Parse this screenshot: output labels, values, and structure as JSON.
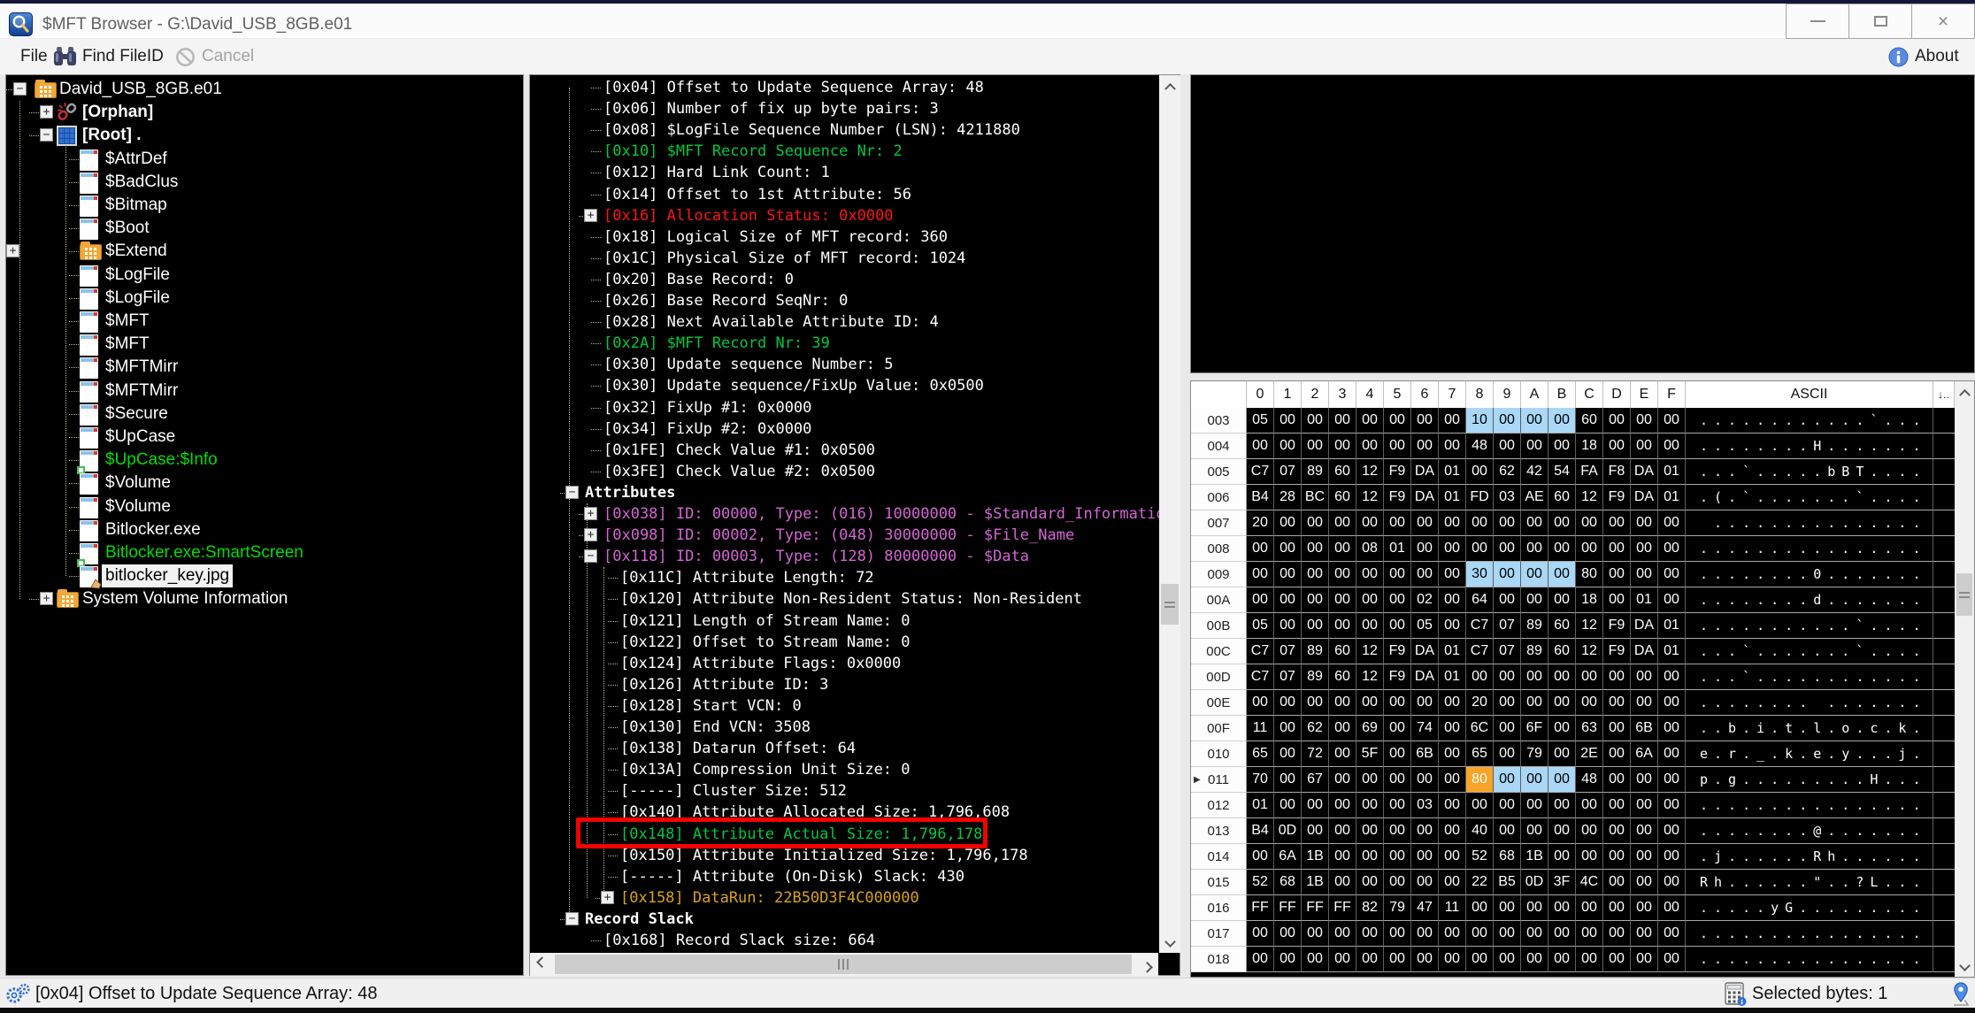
{
  "window": {
    "title": "$MFT Browser - G:\\David_USB_8GB.e01",
    "close_glyph": "×"
  },
  "toolbar": {
    "file": "File",
    "find_fileid": "Find FileID",
    "cancel": "Cancel",
    "about": "About"
  },
  "tree": [
    {
      "label": "David_USB_8GB.e01",
      "level": 0,
      "expander": "-",
      "icon": "folder"
    },
    {
      "label": "[Orphan]",
      "level": 1,
      "expander": "+",
      "icon": "broken-link",
      "bold": true
    },
    {
      "label": "[Root] .",
      "level": 1,
      "expander": "-",
      "icon": "disk",
      "bold": true
    },
    {
      "label": "$AttrDef",
      "level": 2,
      "icon": "file"
    },
    {
      "label": "$BadClus",
      "level": 2,
      "icon": "file"
    },
    {
      "label": "$Bitmap",
      "level": 2,
      "icon": "file"
    },
    {
      "label": "$Boot",
      "level": 2,
      "icon": "file"
    },
    {
      "label": "$Extend",
      "level": 2,
      "expander": "+",
      "icon": "folder"
    },
    {
      "label": "$LogFile",
      "level": 2,
      "icon": "file"
    },
    {
      "label": "$LogFile",
      "level": 2,
      "icon": "file"
    },
    {
      "label": "$MFT",
      "level": 2,
      "icon": "file"
    },
    {
      "label": "$MFT",
      "level": 2,
      "icon": "file"
    },
    {
      "label": "$MFTMirr",
      "level": 2,
      "icon": "file"
    },
    {
      "label": "$MFTMirr",
      "level": 2,
      "icon": "file"
    },
    {
      "label": "$Secure",
      "level": 2,
      "icon": "file"
    },
    {
      "label": "$UpCase",
      "level": 2,
      "icon": "file"
    },
    {
      "label": "$UpCase:$Info",
      "level": 2,
      "icon": "file-ads",
      "color": "green"
    },
    {
      "label": "$Volume",
      "level": 2,
      "icon": "file"
    },
    {
      "label": "$Volume",
      "level": 2,
      "icon": "file"
    },
    {
      "label": "Bitlocker.exe",
      "level": 2,
      "icon": "file"
    },
    {
      "label": "Bitlocker.exe:SmartScreen",
      "level": 2,
      "icon": "file-ads",
      "color": "green"
    },
    {
      "label": "bitlocker_key.jpg",
      "level": 2,
      "icon": "file-hand",
      "selected": true
    },
    {
      "label": "System Volume Information",
      "level": 1,
      "expander": "+",
      "icon": "folder"
    }
  ],
  "record": [
    {
      "text": "[0x04] Offset to Update Sequence Array: 48",
      "level": 1
    },
    {
      "text": "[0x06] Number of fix up byte pairs: 3",
      "level": 1
    },
    {
      "text": "[0x08] $LogFile Sequence Number (LSN): 4211880",
      "level": 1
    },
    {
      "text": "[0x10] $MFT Record Sequence Nr: 2",
      "level": 1,
      "color": "green"
    },
    {
      "text": "[0x12] Hard Link Count: 1",
      "level": 1
    },
    {
      "text": "[0x14] Offset to 1st Attribute: 56",
      "level": 1
    },
    {
      "text": "[0x16] Allocation Status: 0x0000",
      "level": 1,
      "color": "red",
      "expander": "+"
    },
    {
      "text": "[0x18] Logical Size of MFT record: 360",
      "level": 1
    },
    {
      "text": "[0x1C] Physical Size of MFT record: 1024",
      "level": 1
    },
    {
      "text": "[0x20] Base Record: 0",
      "level": 1
    },
    {
      "text": "[0x26] Base Record SeqNr: 0",
      "level": 1
    },
    {
      "text": "[0x28] Next Available Attribute ID: 4",
      "level": 1
    },
    {
      "text": "[0x2A] $MFT Record Nr: 39",
      "level": 1,
      "color": "green"
    },
    {
      "text": "[0x30] Update sequence Number: 5",
      "level": 1
    },
    {
      "text": "[0x30] Update sequence/FixUp Value: 0x0500",
      "level": 1
    },
    {
      "text": "[0x32] FixUp #1: 0x0000",
      "level": 1
    },
    {
      "text": "[0x34] FixUp #2: 0x0000",
      "level": 1
    },
    {
      "text": "[0x1FE] Check Value #1: 0x0500",
      "level": 1
    },
    {
      "text": "[0x3FE] Check Value #2: 0x0500",
      "level": 1
    },
    {
      "text": "Attributes",
      "level": 0,
      "bold": true,
      "expander": "-"
    },
    {
      "text": "[0x038] ID: 00000, Type: (016) 10000000 - $Standard_Information",
      "level": 1,
      "color": "magenta",
      "expander": "+"
    },
    {
      "text": "[0x098] ID: 00002, Type: (048) 30000000 - $File_Name",
      "level": 1,
      "color": "magenta",
      "expander": "+"
    },
    {
      "text": "[0x118] ID: 00003, Type: (128) 80000000 - $Data",
      "level": 1,
      "color": "magenta",
      "expander": "-"
    },
    {
      "text": "[0x11C] Attribute Length: 72",
      "level": 2
    },
    {
      "text": "[0x120] Attribute Non-Resident Status: Non-Resident",
      "level": 2
    },
    {
      "text": "[0x121] Length of Stream Name: 0",
      "level": 2
    },
    {
      "text": "[0x122] Offset to Stream Name: 0",
      "level": 2
    },
    {
      "text": "[0x124] Attribute Flags: 0x0000",
      "level": 2
    },
    {
      "text": "[0x126] Attribute ID: 3",
      "level": 2
    },
    {
      "text": "[0x128] Start VCN: 0",
      "level": 2
    },
    {
      "text": "[0x130] End VCN: 3508",
      "level": 2
    },
    {
      "text": "[0x138] Datarun Offset: 64",
      "level": 2
    },
    {
      "text": "[0x13A] Compression Unit Size: 0",
      "level": 2
    },
    {
      "text": "[-----] Cluster Size: 512",
      "level": 2
    },
    {
      "text": "[0x140] Attribute Allocated Size: 1,796,608",
      "level": 2
    },
    {
      "text": "[0x148] Attribute Actual Size:  1,796,178",
      "level": 2,
      "color": "green",
      "annotated": true
    },
    {
      "text": "[0x150] Attribute Initialized Size:  1,796,178",
      "level": 2
    },
    {
      "text": "[-----] Attribute (On-Disk) Slack:  430",
      "level": 2
    },
    {
      "text": "[0x158] DataRun:  22B50D3F4C000000",
      "level": 2,
      "color": "orange",
      "expander": "+"
    },
    {
      "text": "Record Slack",
      "level": 0,
      "bold": true,
      "expander": "-"
    },
    {
      "text": "[0x168] Record Slack size: 664",
      "level": 1
    }
  ],
  "hex": {
    "columns": [
      "0",
      "1",
      "2",
      "3",
      "4",
      "5",
      "6",
      "7",
      "8",
      "9",
      "A",
      "B",
      "C",
      "D",
      "E",
      "F"
    ],
    "ascii_header": "ASCII",
    "sort_icon": "↓..",
    "rows": [
      {
        "addr": "003",
        "bytes": [
          "05",
          "00",
          "00",
          "00",
          "00",
          "00",
          "00",
          "00",
          "10",
          "00",
          "00",
          "00",
          "60",
          "00",
          "00",
          "00"
        ],
        "ascii": "............`...",
        "hl": {
          "8": "blue",
          "9": "blue",
          "10": "blue",
          "11": "blue"
        }
      },
      {
        "addr": "004",
        "bytes": [
          "00",
          "00",
          "00",
          "00",
          "00",
          "00",
          "00",
          "00",
          "48",
          "00",
          "00",
          "00",
          "18",
          "00",
          "00",
          "00"
        ],
        "ascii": "........H......."
      },
      {
        "addr": "005",
        "bytes": [
          "C7",
          "07",
          "89",
          "60",
          "12",
          "F9",
          "DA",
          "01",
          "00",
          "62",
          "42",
          "54",
          "FA",
          "F8",
          "DA",
          "01"
        ],
        "ascii": "...`.....bBT...."
      },
      {
        "addr": "006",
        "bytes": [
          "B4",
          "28",
          "BC",
          "60",
          "12",
          "F9",
          "DA",
          "01",
          "FD",
          "03",
          "AE",
          "60",
          "12",
          "F9",
          "DA",
          "01"
        ],
        "ascii": ".(.`.......`...."
      },
      {
        "addr": "007",
        "bytes": [
          "20",
          "00",
          "00",
          "00",
          "00",
          "00",
          "00",
          "00",
          "00",
          "00",
          "00",
          "00",
          "00",
          "00",
          "00",
          "00"
        ],
        "ascii": " ..............."
      },
      {
        "addr": "008",
        "bytes": [
          "00",
          "00",
          "00",
          "00",
          "08",
          "01",
          "00",
          "00",
          "00",
          "00",
          "00",
          "00",
          "00",
          "00",
          "00",
          "00"
        ],
        "ascii": "................"
      },
      {
        "addr": "009",
        "bytes": [
          "00",
          "00",
          "00",
          "00",
          "00",
          "00",
          "00",
          "00",
          "30",
          "00",
          "00",
          "00",
          "80",
          "00",
          "00",
          "00"
        ],
        "ascii": "........0.......",
        "hl": {
          "8": "blue",
          "9": "blue",
          "10": "blue",
          "11": "blue"
        }
      },
      {
        "addr": "00A",
        "bytes": [
          "00",
          "00",
          "00",
          "00",
          "00",
          "00",
          "02",
          "00",
          "64",
          "00",
          "00",
          "00",
          "18",
          "00",
          "01",
          "00"
        ],
        "ascii": "........d......."
      },
      {
        "addr": "00B",
        "bytes": [
          "05",
          "00",
          "00",
          "00",
          "00",
          "00",
          "05",
          "00",
          "C7",
          "07",
          "89",
          "60",
          "12",
          "F9",
          "DA",
          "01"
        ],
        "ascii": "...........`...."
      },
      {
        "addr": "00C",
        "bytes": [
          "C7",
          "07",
          "89",
          "60",
          "12",
          "F9",
          "DA",
          "01",
          "C7",
          "07",
          "89",
          "60",
          "12",
          "F9",
          "DA",
          "01"
        ],
        "ascii": "...`.......`...."
      },
      {
        "addr": "00D",
        "bytes": [
          "C7",
          "07",
          "89",
          "60",
          "12",
          "F9",
          "DA",
          "01",
          "00",
          "00",
          "00",
          "00",
          "00",
          "00",
          "00",
          "00"
        ],
        "ascii": "...`............"
      },
      {
        "addr": "00E",
        "bytes": [
          "00",
          "00",
          "00",
          "00",
          "00",
          "00",
          "00",
          "00",
          "20",
          "00",
          "00",
          "00",
          "00",
          "00",
          "00",
          "00"
        ],
        "ascii": "........ ......."
      },
      {
        "addr": "00F",
        "bytes": [
          "11",
          "00",
          "62",
          "00",
          "69",
          "00",
          "74",
          "00",
          "6C",
          "00",
          "6F",
          "00",
          "63",
          "00",
          "6B",
          "00"
        ],
        "ascii": "..b.i.t.l.o.c.k."
      },
      {
        "addr": "010",
        "bytes": [
          "65",
          "00",
          "72",
          "00",
          "5F",
          "00",
          "6B",
          "00",
          "65",
          "00",
          "79",
          "00",
          "2E",
          "00",
          "6A",
          "00"
        ],
        "ascii": "e.r._.k.e.y...j."
      },
      {
        "addr": "011",
        "bytes": [
          "70",
          "00",
          "67",
          "00",
          "00",
          "00",
          "00",
          "00",
          "80",
          "00",
          "00",
          "00",
          "48",
          "00",
          "00",
          "00"
        ],
        "ascii": "p.g.........H...",
        "hl": {
          "8": "orange",
          "9": "blue",
          "10": "blue",
          "11": "blue"
        },
        "marker": true
      },
      {
        "addr": "012",
        "bytes": [
          "01",
          "00",
          "00",
          "00",
          "00",
          "00",
          "03",
          "00",
          "00",
          "00",
          "00",
          "00",
          "00",
          "00",
          "00",
          "00"
        ],
        "ascii": "................"
      },
      {
        "addr": "013",
        "bytes": [
          "B4",
          "0D",
          "00",
          "00",
          "00",
          "00",
          "00",
          "00",
          "40",
          "00",
          "00",
          "00",
          "00",
          "00",
          "00",
          "00"
        ],
        "ascii": "........@......."
      },
      {
        "addr": "014",
        "bytes": [
          "00",
          "6A",
          "1B",
          "00",
          "00",
          "00",
          "00",
          "00",
          "52",
          "68",
          "1B",
          "00",
          "00",
          "00",
          "00",
          "00"
        ],
        "ascii": ".j......Rh......"
      },
      {
        "addr": "015",
        "bytes": [
          "52",
          "68",
          "1B",
          "00",
          "00",
          "00",
          "00",
          "00",
          "22",
          "B5",
          "0D",
          "3F",
          "4C",
          "00",
          "00",
          "00"
        ],
        "ascii": "Rh......\"..?L..."
      },
      {
        "addr": "016",
        "bytes": [
          "FF",
          "FF",
          "FF",
          "FF",
          "82",
          "79",
          "47",
          "11",
          "00",
          "00",
          "00",
          "00",
          "00",
          "00",
          "00",
          "00"
        ],
        "ascii": ".....yG........."
      },
      {
        "addr": "017",
        "bytes": [
          "00",
          "00",
          "00",
          "00",
          "00",
          "00",
          "00",
          "00",
          "00",
          "00",
          "00",
          "00",
          "00",
          "00",
          "00",
          "00"
        ],
        "ascii": "................"
      },
      {
        "addr": "018",
        "bytes": [
          "00",
          "00",
          "00",
          "00",
          "00",
          "00",
          "00",
          "00",
          "00",
          "00",
          "00",
          "00",
          "00",
          "00",
          "00",
          "00"
        ],
        "ascii": "................"
      }
    ]
  },
  "status": {
    "left": "[0x04] Offset to Update Sequence Array: 48",
    "right": "Selected bytes: 1"
  },
  "colors": {
    "green": "#00c83c",
    "red": "#ff1414",
    "magenta": "#d565d5",
    "orange": "#d9a21b",
    "highlight_blue": "#a9d7f5",
    "highlight_orange": "#f7a428",
    "annotation_red": "#f40000",
    "tree_green": "#00dc00"
  }
}
